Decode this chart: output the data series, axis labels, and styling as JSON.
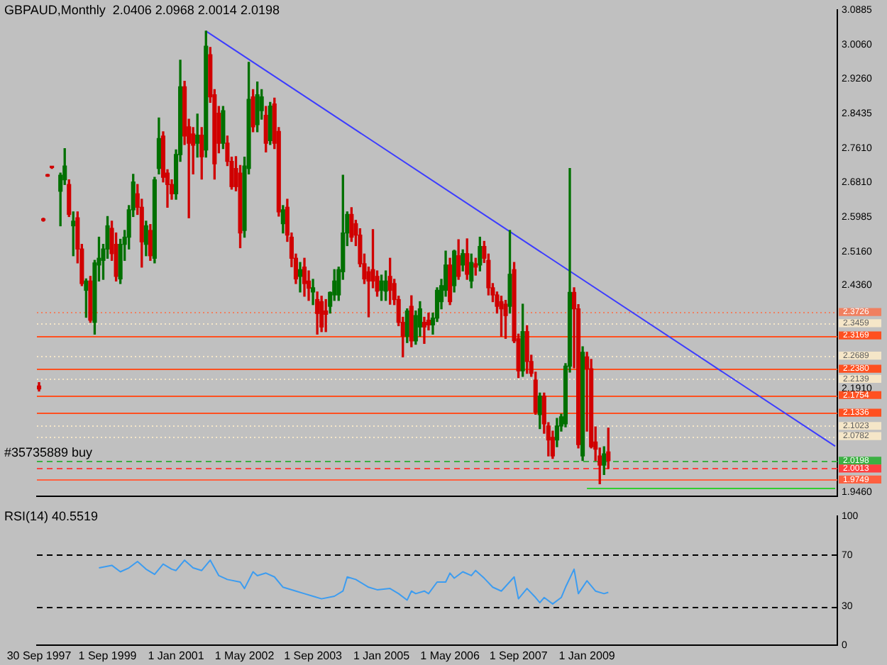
{
  "chart_data": [
    {
      "type": "candlestick",
      "title": "GBPAUD,Monthly  2.0406 2.0968 2.0014 2.0198",
      "categories": [
        null,
        null,
        null,
        null,
        null,
        null,
        null,
        null,
        null,
        null,
        null,
        null,
        null,
        null,
        null,
        null,
        null,
        null,
        null,
        null,
        null,
        null,
        null,
        null,
        null,
        null,
        null,
        null,
        null,
        null,
        null,
        null,
        null,
        null,
        null,
        null,
        null,
        null,
        null,
        null,
        null,
        null,
        null,
        null,
        null,
        null,
        null,
        null,
        null,
        null,
        null,
        null,
        null,
        null,
        null,
        null,
        null,
        null,
        null,
        null,
        null,
        null,
        null,
        null,
        null,
        null,
        null,
        null,
        null,
        null,
        null,
        null,
        null,
        null,
        null,
        null,
        null,
        null,
        null,
        null,
        null,
        null,
        null,
        null,
        null,
        null,
        null,
        null,
        null,
        null,
        null,
        null,
        null,
        null,
        null,
        null,
        null,
        null,
        null,
        null,
        null,
        null,
        null,
        null,
        null,
        null,
        null,
        null,
        null,
        null,
        null,
        null,
        null,
        null,
        null,
        null,
        null,
        null,
        null,
        null,
        null,
        null,
        null,
        null,
        null,
        null,
        null,
        null,
        null,
        null,
        null,
        null,
        null,
        null,
        null,
        null,
        null,
        null,
        null,
        null,
        null,
        null,
        null,
        null,
        null,
        null,
        null,
        null,
        null,
        null,
        null,
        null,
        null,
        null,
        null,
        null,
        null,
        null,
        null,
        null,
        null,
        null,
        null,
        null,
        null,
        null,
        null,
        null,
        null,
        null,
        null,
        null,
        null,
        null,
        null,
        null,
        null,
        null,
        null,
        null,
        null,
        null,
        null,
        null,
        null,
        null,
        null
      ],
      "ohlc": [
        [
          2.197,
          2.205,
          2.185,
          2.19
        ],
        [
          2.592,
          2.595,
          2.588,
          2.59
        ],
        [
          2.697,
          2.699,
          2.694,
          2.695
        ],
        [
          2.716,
          2.718,
          2.713,
          2.715
        ],
        null,
        [
          2.659,
          2.702,
          2.577,
          2.697
        ],
        [
          2.686,
          2.76,
          2.675,
          2.719
        ],
        [
          2.675,
          2.686,
          2.599,
          2.604
        ],
        [
          2.577,
          2.61,
          2.506,
          2.588
        ],
        [
          2.596,
          2.61,
          2.489,
          2.522
        ],
        [
          2.522,
          2.533,
          2.435,
          2.44
        ],
        [
          2.424,
          2.451,
          2.36,
          2.446
        ],
        [
          2.446,
          2.457,
          2.348,
          2.353
        ],
        [
          2.348,
          2.495,
          2.32,
          2.489
        ],
        [
          2.484,
          2.55,
          2.446,
          2.5
        ],
        [
          2.495,
          2.533,
          2.45,
          2.522
        ],
        [
          2.522,
          2.599,
          2.5,
          2.577
        ],
        [
          2.571,
          2.588,
          2.495,
          2.511
        ],
        [
          2.533,
          2.56,
          2.446,
          2.457
        ],
        [
          2.451,
          2.545,
          2.44,
          2.533
        ],
        [
          2.533,
          2.566,
          2.495,
          2.55
        ],
        [
          2.55,
          2.625,
          2.522,
          2.615
        ],
        [
          2.615,
          2.699,
          2.599,
          2.681
        ],
        [
          2.653,
          2.675,
          2.604,
          2.621
        ],
        [
          2.621,
          2.64,
          2.479,
          2.539
        ],
        [
          2.533,
          2.588,
          2.506,
          2.577
        ],
        [
          2.566,
          2.58,
          2.495,
          2.506
        ],
        [
          2.5,
          2.692,
          2.489,
          2.686
        ],
        [
          2.713,
          2.833,
          2.7,
          2.784
        ],
        [
          2.79,
          2.8,
          2.681,
          2.692
        ],
        [
          2.702,
          2.71,
          2.621,
          2.675
        ],
        [
          2.675,
          2.686,
          2.64,
          2.653
        ],
        [
          2.653,
          2.757,
          2.64,
          2.746
        ],
        [
          2.746,
          2.97,
          2.73,
          2.907
        ],
        [
          2.907,
          2.92,
          2.77,
          2.79
        ],
        [
          2.812,
          2.83,
          2.596,
          2.773
        ],
        [
          2.795,
          2.81,
          2.7,
          2.768
        ],
        [
          2.773,
          2.842,
          2.74,
          2.792
        ],
        [
          2.792,
          2.81,
          2.688,
          2.741
        ],
        [
          2.757,
          3.039,
          2.74,
          3.003
        ],
        [
          2.983,
          3.0,
          2.87,
          2.883
        ],
        [
          2.888,
          2.9,
          2.688,
          2.724
        ],
        [
          2.844,
          2.86,
          2.75,
          2.773
        ],
        [
          2.773,
          2.86,
          2.76,
          2.85
        ],
        [
          2.773,
          2.79,
          2.72,
          2.73
        ],
        [
          2.73,
          2.74,
          2.664,
          2.67
        ],
        [
          2.713,
          2.741,
          2.66,
          2.67
        ],
        [
          2.702,
          2.72,
          2.525,
          2.56
        ],
        [
          2.566,
          2.74,
          2.55,
          2.719
        ],
        [
          2.713,
          2.965,
          2.7,
          2.877
        ],
        [
          2.883,
          2.9,
          2.8,
          2.812
        ],
        [
          2.817,
          2.918,
          2.8,
          2.888
        ],
        [
          2.85,
          2.9,
          2.83,
          2.883
        ],
        [
          2.839,
          2.86,
          2.752,
          2.773
        ],
        [
          2.779,
          2.87,
          2.77,
          2.861
        ],
        [
          2.866,
          2.88,
          2.76,
          2.773
        ],
        [
          2.801,
          2.81,
          2.6,
          2.61
        ],
        [
          2.582,
          2.625,
          2.56,
          2.615
        ],
        [
          2.621,
          2.64,
          2.54,
          2.555
        ],
        [
          2.55,
          2.56,
          2.48,
          2.5
        ],
        [
          2.5,
          2.51,
          2.44,
          2.451
        ],
        [
          2.457,
          2.49,
          2.42,
          2.473
        ],
        [
          2.479,
          2.5,
          2.41,
          2.44
        ],
        [
          2.446,
          2.47,
          2.4,
          2.429
        ],
        [
          2.42,
          2.45,
          2.39,
          2.43
        ],
        [
          2.402,
          2.42,
          2.32,
          2.369
        ],
        [
          2.397,
          2.41,
          2.326,
          2.337
        ],
        [
          2.375,
          2.402,
          2.326,
          2.367
        ],
        [
          2.386,
          2.42,
          2.37,
          2.419
        ],
        [
          2.413,
          2.473,
          2.4,
          2.446
        ],
        [
          2.413,
          2.479,
          2.4,
          2.473
        ],
        [
          2.468,
          2.697,
          2.45,
          2.56
        ],
        [
          2.56,
          2.61,
          2.53,
          2.604
        ],
        [
          2.604,
          2.62,
          2.54,
          2.55
        ],
        [
          2.582,
          2.59,
          2.53,
          2.555
        ],
        [
          2.555,
          2.57,
          2.48,
          2.487
        ],
        [
          2.487,
          2.51,
          2.44,
          2.451
        ],
        [
          2.468,
          2.479,
          2.361,
          2.446
        ],
        [
          2.473,
          2.568,
          2.43,
          2.446
        ],
        [
          2.457,
          2.47,
          2.41,
          2.422
        ],
        [
          2.424,
          2.46,
          2.4,
          2.446
        ],
        [
          2.422,
          2.47,
          2.4,
          2.446
        ],
        [
          2.457,
          2.5,
          2.391,
          2.424
        ],
        [
          2.44,
          2.45,
          2.39,
          2.402
        ],
        [
          2.402,
          2.41,
          2.34,
          2.348
        ],
        [
          2.348,
          2.36,
          2.266,
          2.315
        ],
        [
          2.315,
          2.38,
          2.3,
          2.375
        ],
        [
          2.386,
          2.411,
          2.29,
          2.304
        ],
        [
          2.304,
          2.375,
          2.296,
          2.364
        ],
        [
          2.337,
          2.397,
          2.315,
          2.38
        ],
        [
          2.348,
          2.36,
          2.298,
          2.337
        ],
        [
          2.353,
          2.37,
          2.33,
          2.342
        ],
        [
          2.342,
          2.37,
          2.32,
          2.358
        ],
        [
          2.358,
          2.43,
          2.35,
          2.424
        ],
        [
          2.397,
          2.45,
          2.38,
          2.435
        ],
        [
          2.424,
          2.517,
          2.41,
          2.484
        ],
        [
          2.484,
          2.5,
          2.39,
          2.397
        ],
        [
          2.435,
          2.519,
          2.42,
          2.517
        ],
        [
          2.506,
          2.544,
          2.45,
          2.457
        ],
        [
          2.484,
          2.52,
          2.47,
          2.511
        ],
        [
          2.511,
          2.546,
          2.45,
          2.462
        ],
        [
          2.446,
          2.51,
          2.43,
          2.49
        ],
        [
          2.487,
          2.5,
          2.46,
          2.479
        ],
        [
          2.484,
          2.55,
          2.47,
          2.528
        ],
        [
          2.528,
          2.54,
          2.49,
          2.5
        ],
        [
          2.495,
          2.51,
          2.413,
          2.43
        ],
        [
          2.43,
          2.44,
          2.397,
          2.413
        ],
        [
          2.413,
          2.42,
          2.37,
          2.386
        ],
        [
          2.397,
          2.41,
          2.315,
          2.38
        ],
        [
          2.391,
          2.4,
          2.31,
          2.364
        ],
        [
          2.386,
          2.566,
          2.37,
          2.462
        ],
        [
          2.473,
          2.49,
          2.3,
          2.304
        ],
        [
          2.309,
          2.32,
          2.217,
          2.233
        ],
        [
          2.233,
          2.391,
          2.22,
          2.326
        ],
        [
          2.326,
          2.34,
          2.227,
          2.255
        ],
        [
          2.255,
          2.27,
          2.22,
          2.227
        ],
        [
          2.211,
          2.23,
          2.13,
          2.135
        ],
        [
          2.129,
          2.18,
          2.096,
          2.173
        ],
        [
          2.173,
          2.18,
          2.085,
          2.107
        ],
        [
          2.102,
          2.11,
          2.031,
          2.069
        ],
        [
          2.075,
          2.09,
          2.025,
          2.031
        ],
        [
          2.069,
          2.12,
          2.053,
          2.102
        ],
        [
          2.102,
          2.13,
          2.09,
          2.124
        ],
        [
          2.107,
          2.25,
          2.1,
          2.244
        ],
        [
          2.244,
          2.713,
          2.23,
          2.419
        ],
        [
          2.419,
          2.43,
          2.24,
          2.38
        ],
        [
          2.38,
          2.39,
          2.05,
          2.058
        ],
        [
          2.031,
          2.29,
          2.02,
          2.277
        ],
        [
          2.266,
          2.277,
          2.09,
          2.238
        ],
        [
          2.238,
          2.26,
          2.05,
          2.053
        ],
        [
          2.064,
          2.1,
          2.02,
          2.047
        ],
        [
          2.031,
          2.05,
          1.965,
          2.009
        ],
        [
          2.009,
          2.053,
          1.987,
          2.036
        ],
        [
          2.0406,
          2.0968,
          2.0014,
          2.0198
        ],
        null,
        null,
        null,
        null,
        null,
        null,
        null,
        null,
        null,
        null,
        null,
        null,
        null,
        null,
        null,
        null,
        null,
        null,
        null,
        null,
        null,
        null,
        null,
        null,
        null,
        null,
        null,
        null,
        null,
        null,
        null,
        null,
        null,
        null,
        null,
        null,
        null,
        null,
        null,
        null,
        null,
        null,
        null,
        null,
        null,
        null,
        null,
        null,
        null,
        null,
        null,
        null,
        null
      ],
      "colors": [
        "#d00000",
        "#d00000",
        "#d00000",
        "#d00000",
        null,
        "#007000",
        "#007000",
        "#d00000",
        "#007000",
        "#d00000",
        "#d00000",
        "#007000",
        "#d00000",
        "#007000",
        "#007000",
        "#007000",
        "#007000",
        "#d00000",
        "#d00000",
        "#007000",
        "#007000",
        "#007000",
        "#007000",
        "#d00000",
        "#d00000",
        "#007000",
        "#d00000",
        "#007000",
        "#007000",
        "#d00000",
        "#d00000",
        "#d00000",
        "#007000",
        "#007000",
        "#d00000",
        "#d00000",
        "#d00000",
        "#007000",
        "#d00000",
        "#007000",
        "#d00000",
        "#d00000",
        "#d00000",
        "#007000",
        "#d00000",
        "#d00000",
        "#d00000",
        "#d00000",
        "#007000",
        "#007000",
        "#d00000",
        "#007000",
        "#007000",
        "#d00000",
        "#007000",
        "#d00000",
        "#d00000",
        "#007000",
        "#d00000",
        "#d00000",
        "#d00000",
        "#007000",
        "#d00000",
        "#d00000",
        "#007000",
        "#d00000",
        "#d00000",
        "#d00000",
        "#007000",
        "#007000",
        "#007000",
        "#007000",
        "#007000",
        "#d00000",
        "#d00000",
        "#d00000",
        "#d00000",
        "#d00000",
        "#d00000",
        "#d00000",
        "#007000",
        "#007000",
        "#d00000",
        "#d00000",
        "#d00000",
        "#d00000",
        "#007000",
        "#d00000",
        "#007000",
        "#007000",
        "#d00000",
        "#d00000",
        "#007000",
        "#007000",
        "#007000",
        "#007000",
        "#d00000",
        "#007000",
        "#d00000",
        "#007000",
        "#d00000",
        "#007000",
        "#d00000",
        "#007000",
        "#d00000",
        "#d00000",
        "#d00000",
        "#d00000",
        "#d00000",
        "#d00000",
        "#007000",
        "#d00000",
        "#d00000",
        "#007000",
        "#d00000",
        "#d00000",
        "#d00000",
        "#007000",
        "#d00000",
        "#d00000",
        "#d00000",
        "#007000",
        "#007000",
        "#007000",
        "#007000",
        "#d00000",
        "#d00000",
        "#007000",
        "#d00000",
        "#d00000",
        "#d00000",
        "#d00000",
        "#007000",
        "#d00000",
        null,
        null,
        null,
        null,
        null,
        null,
        null,
        null,
        null,
        null,
        null,
        null,
        null,
        null,
        null,
        null,
        null,
        null,
        null,
        null,
        null,
        null,
        null,
        null,
        null,
        null,
        null,
        null,
        null,
        null,
        null,
        null,
        null,
        null,
        null,
        null,
        null,
        null,
        null,
        null,
        null,
        null,
        null,
        null,
        null,
        null,
        null,
        null,
        null,
        null,
        null,
        null,
        null
      ],
      "series": [
        {
          "type": "line",
          "color": "#3c3cff",
          "values": [
            null,
            null,
            null,
            null,
            null,
            null,
            null,
            null,
            null,
            null,
            null,
            null,
            null,
            null,
            null,
            null,
            null,
            null,
            null,
            null,
            null,
            null,
            null,
            null,
            null,
            null,
            null,
            null,
            null,
            null,
            null,
            null,
            null,
            null,
            null,
            null,
            null,
            null,
            null,
            3.039,
            null,
            null,
            null,
            null,
            null,
            null,
            null,
            null,
            null,
            null,
            null,
            null,
            null,
            null,
            null,
            null,
            null,
            null,
            null,
            null,
            null,
            null,
            null,
            null,
            null,
            null,
            null,
            null,
            null,
            null,
            null,
            null,
            null,
            null,
            null,
            null,
            null,
            null,
            null,
            null,
            null,
            null,
            null,
            null,
            null,
            null,
            null,
            null,
            null,
            null,
            null,
            null,
            null,
            null,
            null,
            null,
            null,
            null,
            null,
            null,
            null,
            null,
            null,
            null,
            null,
            null,
            null,
            null,
            null,
            null,
            null,
            null,
            null,
            null,
            null,
            null,
            null,
            null,
            null,
            null,
            null,
            null,
            null,
            null,
            null,
            null,
            null,
            null,
            null,
            null,
            null,
            null,
            null,
            null,
            null,
            null,
            null,
            null,
            null,
            null,
            null,
            null,
            null,
            null,
            null,
            null,
            null,
            null,
            null,
            null,
            null,
            null,
            null,
            null,
            null,
            null,
            null,
            null,
            null,
            null,
            null,
            null,
            null,
            null,
            null,
            null,
            null,
            null,
            null,
            null,
            null,
            null,
            null,
            null,
            null,
            null,
            null,
            null,
            null,
            null,
            null,
            null,
            null,
            null,
            null,
            null,
            2.054
          ]
        },
        {
          "type": "line",
          "color": "#32cd32",
          "values": [
            null,
            null,
            null,
            null,
            null,
            null,
            null,
            null,
            null,
            null,
            null,
            null,
            null,
            null,
            null,
            null,
            null,
            null,
            null,
            null,
            null,
            null,
            null,
            null,
            null,
            null,
            null,
            null,
            null,
            null,
            null,
            null,
            null,
            null,
            null,
            null,
            null,
            null,
            null,
            null,
            null,
            null,
            null,
            null,
            null,
            null,
            null,
            null,
            null,
            null,
            null,
            null,
            null,
            null,
            null,
            null,
            null,
            null,
            null,
            null,
            null,
            null,
            null,
            null,
            null,
            null,
            null,
            null,
            null,
            null,
            null,
            null,
            null,
            null,
            null,
            null,
            null,
            null,
            null,
            null,
            null,
            null,
            null,
            null,
            null,
            null,
            null,
            null,
            null,
            null,
            null,
            null,
            null,
            null,
            null,
            null,
            null,
            null,
            null,
            null,
            null,
            null,
            null,
            null,
            null,
            null,
            null,
            null,
            null,
            null,
            null,
            null,
            null,
            null,
            null,
            null,
            null,
            null,
            null,
            null,
            null,
            null,
            null,
            null,
            null,
            null,
            null,
            null,
            1.954,
            null,
            null,
            null,
            null,
            null,
            null,
            null,
            null,
            null,
            null,
            null,
            null,
            null,
            null,
            null,
            null,
            null,
            null,
            null,
            null,
            null,
            null,
            null,
            null,
            null,
            null,
            null,
            null,
            null,
            null,
            null,
            null,
            null,
            null,
            null,
            null,
            null,
            null,
            null,
            null,
            null,
            null,
            null,
            null,
            null,
            null,
            null,
            null,
            null,
            null,
            null,
            null,
            null,
            null,
            null,
            null,
            null,
            1.954
          ]
        }
      ],
      "ylim": [
        1.936,
        3.0885
      ],
      "yticks": [
        3.0885,
        {
          "value": 3.006,
          "label": "3.0060"
        },
        {
          "value": 2.926,
          "label": "2.9260"
        },
        2.8435,
        {
          "value": 2.761,
          "label": "2.7610"
        },
        {
          "value": 2.681,
          "label": "2.6810"
        },
        2.5985,
        {
          "value": 2.516,
          "label": "2.5160"
        },
        {
          "value": 2.436,
          "label": "2.4360"
        },
        {
          "value": 2.191,
          "label": "2.1910"
        },
        {
          "value": 1.946,
          "label": "1.9460"
        }
      ],
      "ref_lines": [
        {
          "axis": "y",
          "value": 2.3726,
          "label": "2.3726",
          "color": "#f08060",
          "line_style": "dotted"
        },
        {
          "axis": "y",
          "value": 2.3459,
          "label": "2.3459",
          "color": "#f5e6c8",
          "line_style": "dotted"
        },
        {
          "axis": "y",
          "value": 2.3169,
          "label": "2.3169",
          "color": "#ff5020",
          "line_style": "solid"
        },
        {
          "axis": "y",
          "value": 2.2689,
          "label": "2.2689",
          "color": "#f5e6c8",
          "line_style": "dotted"
        },
        {
          "axis": "y",
          "value": 2.238,
          "label": "2.2380",
          "color": "#ff5020",
          "line_style": "solid"
        },
        {
          "axis": "y",
          "value": 2.2139,
          "label": "2.2139",
          "color": "#f5e6c8",
          "line_style": "dotted"
        },
        {
          "axis": "y",
          "value": 2.1754,
          "label": "2.1754",
          "color": "#ff5020",
          "line_style": "solid"
        },
        {
          "axis": "y",
          "value": 2.1336,
          "label": "2.1336",
          "color": "#ff5020",
          "line_style": "solid"
        },
        {
          "axis": "y",
          "value": 2.1023,
          "label": "2.1023",
          "color": "#f5e6c8",
          "line_style": "dotted"
        },
        {
          "axis": "y",
          "value": 2.0782,
          "label": "2.0782",
          "color": "#f5e6c8",
          "line_style": "dotted"
        },
        {
          "axis": "y",
          "value": 2.0198,
          "label": "2.0198",
          "color": "#3cb043",
          "line_style": "dashed"
        },
        {
          "axis": "y",
          "value": 2.0013,
          "label": "2.0013",
          "color": "#ff4040",
          "line_style": "dashed"
        },
        {
          "axis": "y",
          "value": 1.9749,
          "label": "1.9749",
          "color": "#ff6040",
          "line_style": "solid"
        }
      ],
      "annotations": [
        {
          "text": "#35735889 buy",
          "y": 2.0198
        }
      ],
      "tick_labels": "y"
    },
    {
      "type": "line",
      "title": "RSI(14) 40.5519",
      "categories": [
        "30 Sep 1997",
        null,
        null,
        null,
        null,
        null,
        null,
        null,
        null,
        null,
        null,
        null,
        null,
        null,
        null,
        null,
        "1 Sep 1999",
        null,
        null,
        null,
        null,
        null,
        null,
        null,
        null,
        null,
        null,
        null,
        null,
        null,
        null,
        null,
        "1 Jan 2001",
        null,
        null,
        null,
        null,
        null,
        null,
        null,
        null,
        null,
        null,
        null,
        null,
        null,
        null,
        null,
        "1 May 2002",
        null,
        null,
        null,
        null,
        null,
        null,
        null,
        null,
        null,
        null,
        null,
        null,
        null,
        null,
        null,
        "1 Sep 2003",
        null,
        null,
        null,
        null,
        null,
        null,
        null,
        null,
        null,
        null,
        null,
        null,
        null,
        null,
        null,
        "1 Jan 2005",
        null,
        null,
        null,
        null,
        null,
        null,
        null,
        null,
        null,
        null,
        null,
        null,
        null,
        null,
        null,
        "1 May 2006",
        null,
        null,
        null,
        null,
        null,
        null,
        null,
        null,
        null,
        null,
        null,
        null,
        null,
        null,
        null,
        "1 Sep 2007",
        null,
        null,
        null,
        null,
        null,
        null,
        null,
        null,
        null,
        null,
        null,
        null,
        null,
        null,
        null,
        "1 Jan 2009",
        null,
        null,
        null,
        null,
        null,
        null,
        null,
        null,
        null,
        null,
        null,
        null,
        null,
        null,
        null,
        null,
        null,
        null,
        null,
        null,
        null,
        null,
        null,
        null,
        null,
        null,
        null,
        null,
        null,
        null,
        null,
        null,
        null,
        null,
        null,
        null,
        null,
        null,
        null,
        null,
        null,
        null,
        null,
        null,
        null,
        null,
        null,
        null,
        null,
        null,
        null,
        null,
        null,
        null,
        null,
        null,
        null,
        null
      ],
      "series": [
        {
          "color": "#3c9cf0",
          "values": [
            null,
            null,
            null,
            null,
            null,
            null,
            null,
            null,
            null,
            null,
            null,
            null,
            null,
            null,
            60,
            null,
            null,
            62,
            null,
            57,
            null,
            60,
            null,
            65,
            null,
            59,
            null,
            55,
            null,
            63,
            null,
            59,
            58,
            null,
            66,
            null,
            60,
            null,
            58,
            null,
            66,
            null,
            54,
            null,
            51,
            null,
            null,
            49,
            44,
            null,
            57,
            54,
            null,
            56,
            null,
            53,
            null,
            45,
            null,
            null,
            42,
            null,
            40,
            null,
            38,
            null,
            36,
            null,
            null,
            38,
            null,
            42,
            53,
            null,
            51,
            null,
            null,
            45,
            null,
            43,
            null,
            null,
            44,
            null,
            40,
            null,
            35,
            42,
            40,
            null,
            42,
            40,
            null,
            49,
            null,
            49,
            56,
            52,
            null,
            57,
            null,
            54,
            58,
            null,
            52,
            null,
            45,
            null,
            42,
            null,
            null,
            53,
            36,
            null,
            44,
            null,
            37,
            33,
            37,
            null,
            32,
            null,
            37,
            45,
            null,
            59,
            40,
            null,
            50,
            null,
            42,
            null,
            40,
            41,
            null,
            null,
            null,
            null,
            null,
            null,
            null,
            null,
            null,
            null,
            null,
            null,
            null,
            null,
            null,
            null,
            null,
            null,
            null,
            null,
            null,
            null,
            null,
            null,
            null,
            null,
            null,
            null,
            null,
            null,
            null,
            null,
            null,
            null,
            null,
            null,
            null,
            null,
            null,
            null,
            null,
            null,
            null,
            null,
            null,
            null,
            null,
            null,
            null,
            null,
            null,
            null,
            null
          ]
        }
      ],
      "ylim": [
        0,
        100
      ],
      "yticks": [
        0,
        30,
        70,
        100
      ],
      "ref_lines": [
        {
          "axis": "y",
          "value": 70,
          "color": "#000000",
          "line_style": "dashed"
        },
        {
          "axis": "y",
          "value": 30,
          "color": "#000000",
          "line_style": "dashed"
        }
      ]
    }
  ]
}
